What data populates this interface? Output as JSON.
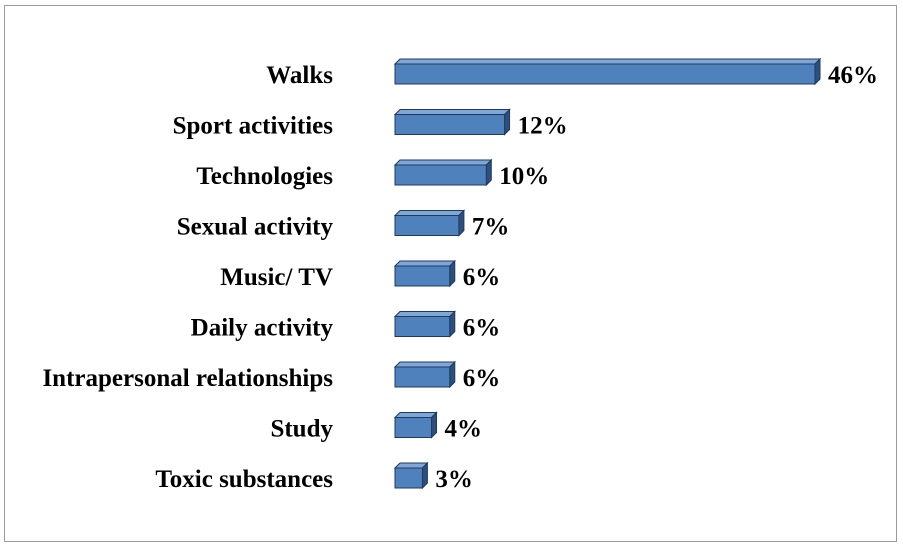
{
  "chart_data": {
    "type": "bar",
    "orientation": "horizontal",
    "title": "",
    "xlabel": "",
    "ylabel": "",
    "xlim": [
      0,
      46
    ],
    "grid": false,
    "legend": "none",
    "categories": [
      "Walks",
      "Sport activities",
      "Technologies",
      "Sexual activity",
      "Music/ TV",
      "Daily activity",
      "Intrapersonal relationships",
      "Study",
      "Toxic substances"
    ],
    "values": [
      46,
      12,
      10,
      7,
      6,
      6,
      6,
      4,
      3
    ],
    "value_labels": [
      "46%",
      "12%",
      "10%",
      "7%",
      "6%",
      "6%",
      "6%",
      "4%",
      "3%"
    ],
    "colors": {
      "bar_front": "#4f81bd",
      "bar_top": "#7ea6d6",
      "bar_side": "#2c4f7c",
      "bar_outline": "#1f3a60"
    }
  }
}
